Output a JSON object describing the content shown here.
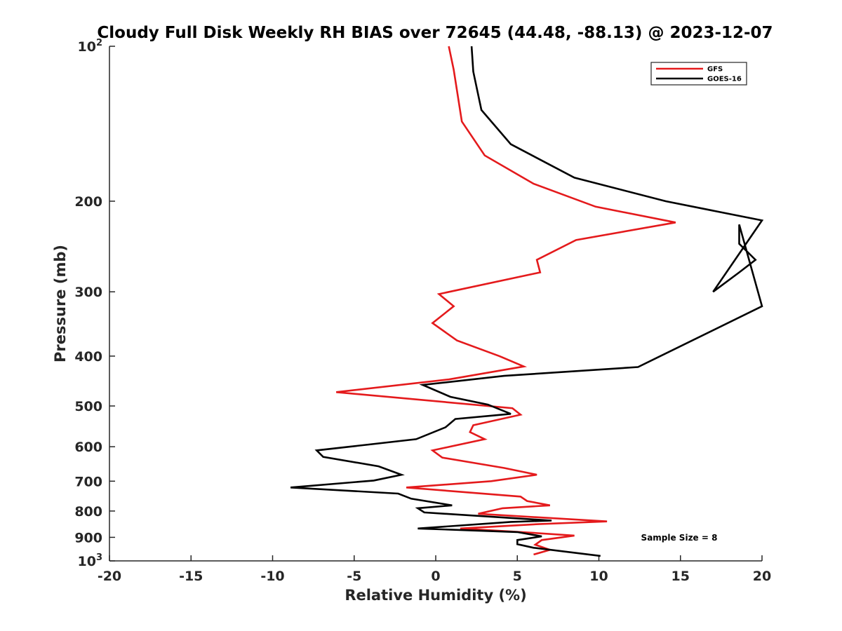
{
  "chart_data": {
    "type": "line",
    "title": "Cloudy Full Disk Weekly RH BIAS over 72645 (44.48, -88.13) @ 2023-12-07",
    "xlabel": "Relative Humidity (%)",
    "ylabel": "Pressure (mb)",
    "xlim": [
      -20,
      20
    ],
    "ylim": [
      100,
      1000
    ],
    "y_scale": "log",
    "y_reversed": true,
    "grid": false,
    "legend_position": "top-right",
    "x_ticks": [
      "-20",
      "-15",
      "-10",
      "-5",
      "0",
      "5",
      "10",
      "15",
      "20"
    ],
    "y_ticks": [
      {
        "base": "10",
        "exp": "2",
        "value": 100
      },
      {
        "label": "200",
        "value": 200
      },
      {
        "label": "300",
        "value": 300
      },
      {
        "label": "400",
        "value": 400
      },
      {
        "label": "500",
        "value": 500
      },
      {
        "label": "600",
        "value": 600
      },
      {
        "label": "700",
        "value": 700
      },
      {
        "label": "800",
        "value": 800
      },
      {
        "label": "900",
        "value": 900
      },
      {
        "base": "10",
        "exp": "3",
        "value": 1000
      }
    ],
    "annotation": "Sample Size = 8",
    "series": [
      {
        "name": "GFS",
        "color": "#e41a1c",
        "x": [
          0.8,
          1.1,
          1.6,
          3.0,
          6.0,
          9.8,
          14.7,
          8.6,
          6.2,
          6.4,
          0.2,
          1.1,
          -0.2,
          1.3,
          3.9,
          5.4,
          0.8,
          -6.1,
          4.7,
          5.2,
          2.3,
          2.1,
          3.0,
          -0.2,
          0.4,
          4.2,
          6.2,
          3.4,
          -1.8,
          5.2,
          5.6,
          7.0,
          4.1,
          2.6,
          10.5,
          6.4,
          1.5,
          5.5,
          8.5,
          6.5,
          6.1,
          7.0,
          6.0
        ],
        "y": [
          100,
          111,
          140,
          163,
          185,
          205,
          220,
          238,
          260,
          275,
          303,
          320,
          345,
          373,
          400,
          419,
          444,
          470,
          505,
          520,
          545,
          562,
          580,
          610,
          630,
          660,
          680,
          700,
          720,
          750,
          765,
          780,
          790,
          810,
          838,
          848,
          865,
          880,
          893,
          911,
          930,
          952,
          972
        ]
      },
      {
        "name": "GOES-16",
        "color": "#000000",
        "x": [
          2.2,
          2.3,
          2.8,
          4.6,
          8.5,
          14.1,
          20.0,
          17.0,
          18.6,
          19.6,
          18.6,
          18.6,
          20.0,
          12.4,
          4.2,
          -0.8,
          0.9,
          3.2,
          4.6,
          1.2,
          0.6,
          -1.2,
          -7.3,
          -6.9,
          -3.5,
          -2.1,
          -3.8,
          -8.9,
          -2.3,
          -1.5,
          1.0,
          -1.1,
          -0.7,
          7.1,
          4.6,
          -1.1,
          5.0,
          6.5,
          5.0,
          5.0,
          6.0,
          10.1
        ],
        "y": [
          100,
          112,
          133,
          155,
          180,
          200,
          218,
          300,
          275,
          260,
          242,
          222,
          320,
          420,
          437,
          455,
          480,
          497,
          518,
          530,
          550,
          580,
          610,
          628,
          655,
          680,
          698,
          720,
          740,
          757,
          780,
          790,
          805,
          835,
          840,
          865,
          879,
          896,
          911,
          928,
          943,
          978
        ]
      }
    ]
  }
}
